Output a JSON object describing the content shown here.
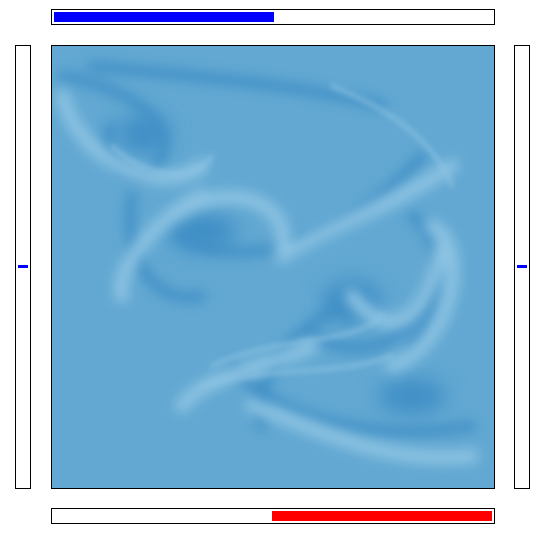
{
  "colors": {
    "background": "#ffffff",
    "frame": "#000000",
    "field_base": "#62a8d2",
    "field_dark": "#3f8fc6",
    "field_light": "#8cc3e2",
    "top_bar_fill": "#0000ff",
    "bottom_bar_fill": "#ff0000",
    "left_marker": "#0000ff",
    "right_marker": "#0000ff"
  },
  "top_bar": {
    "fill_fraction": 0.5,
    "fill_from": "left"
  },
  "bottom_bar": {
    "fill_fraction": 0.5,
    "fill_from": "right"
  },
  "left_bar": {
    "marker_position": 0.5
  },
  "right_bar": {
    "marker_position": 0.5
  },
  "field": {
    "pattern": "fluid-vortex-swirls",
    "icon": "fluid-field"
  }
}
